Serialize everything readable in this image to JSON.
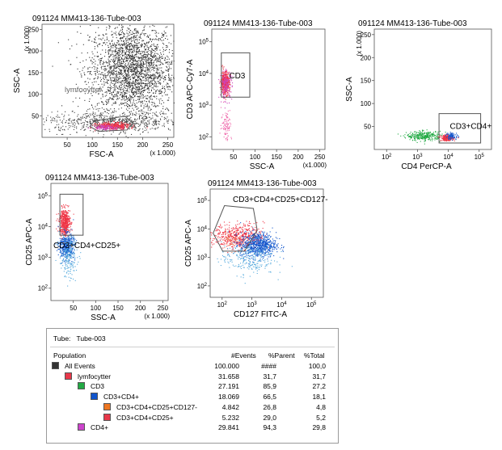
{
  "chart_data": [
    {
      "type": "scatter",
      "title": "091124 MM413-136-Tube-003",
      "xlabel": "FSC-A",
      "ylabel": "SSC-A",
      "x_ticks": [
        "50",
        "100",
        "150",
        "200",
        "250"
      ],
      "x_multiplier": "(x 1.000)",
      "y_ticks": [
        "50",
        "100",
        "150",
        "200",
        "250"
      ],
      "y_multiplier": "(x 1.000)",
      "xlim": [
        0,
        262
      ],
      "ylim": [
        0,
        262
      ],
      "gate": {
        "label": "lymfocytter",
        "polygon": [
          [
            95,
            25
          ],
          [
            104,
            38
          ],
          [
            165,
            49
          ],
          [
            180,
            33
          ],
          [
            169,
            17
          ],
          [
            112,
            14
          ]
        ]
      },
      "populations": [
        {
          "color": "#333333",
          "cx": 178,
          "cy": 157,
          "sx": 42,
          "sy": 55,
          "n": 2600
        },
        {
          "color": "#444444",
          "cx": 140,
          "cy": 36,
          "sx": 75,
          "sy": 12,
          "n": 650
        },
        {
          "color": "#ee3344",
          "cx": 140,
          "cy": 27,
          "sx": 16,
          "sy": 4,
          "n": 380
        },
        {
          "color": "#cc44bb",
          "cx": 127,
          "cy": 24,
          "sx": 14,
          "sy": 3,
          "n": 120
        }
      ]
    },
    {
      "type": "scatter",
      "title": "091124 MM413-136-Tube-003",
      "xlabel": "SSC-A",
      "ylabel": "CD3 APC-Cy7-A",
      "x_ticks": [
        "50",
        "100",
        "150",
        "200",
        "250"
      ],
      "x_multiplier": "(x1.000)",
      "y_ticks": [
        "10^2",
        "10^3",
        "10^4",
        "10^5"
      ],
      "xlim": [
        0,
        262
      ],
      "ylim": [
        1.6,
        5.4
      ],
      "gate": {
        "label": "CD3",
        "polygon": [
          [
            22,
            3.25
          ],
          [
            22,
            4.65
          ],
          [
            88,
            4.65
          ],
          [
            88,
            3.25
          ]
        ]
      },
      "populations": [
        {
          "color": "#ee3344",
          "cx": 30,
          "cy": 3.72,
          "sx": 5,
          "sy": 0.18,
          "n": 420
        },
        {
          "color": "#cc44bb",
          "cx": 32,
          "cy": 3.65,
          "sx": 7,
          "sy": 0.22,
          "n": 160
        },
        {
          "color": "#ee66aa",
          "cx": 33,
          "cy": 2.4,
          "sx": 6,
          "sy": 0.25,
          "n": 90
        }
      ]
    },
    {
      "type": "scatter",
      "title": "091124 MM413-136-Tube-003",
      "xlabel": "CD4 PerCP-A",
      "ylabel": "SSC-A",
      "x_ticks": [
        "10^2",
        "10^3",
        "10^4",
        "10^5"
      ],
      "y_ticks": [
        "50",
        "100",
        "150",
        "200",
        "250"
      ],
      "y_multiplier": "(x 1.000)",
      "xlim": [
        1.6,
        5.4
      ],
      "ylim": [
        0,
        262
      ],
      "gate": {
        "label": "CD3+CD4+",
        "polygon": [
          [
            3.7,
            14
          ],
          [
            3.7,
            78
          ],
          [
            5.05,
            78
          ],
          [
            5.05,
            14
          ]
        ]
      },
      "populations": [
        {
          "color": "#22aa44",
          "cx": 3.2,
          "cy": 30,
          "sx": 0.28,
          "sy": 5,
          "n": 300
        },
        {
          "color": "#ee3344",
          "cx": 3.95,
          "cy": 26,
          "sx": 0.1,
          "sy": 3,
          "n": 260
        },
        {
          "color": "#1155cc",
          "cx": 4.1,
          "cy": 30,
          "sx": 0.1,
          "sy": 4,
          "n": 80
        }
      ]
    },
    {
      "type": "scatter",
      "title": "091124 MM413-136-Tube-003",
      "xlabel": "SSC-A",
      "ylabel": "CD25 APC-A",
      "x_ticks": [
        "50",
        "100",
        "150",
        "200",
        "250"
      ],
      "x_multiplier": "(x 1.000)",
      "y_ticks": [
        "10^2",
        "10^3",
        "10^4",
        "10^5"
      ],
      "xlim": [
        0,
        262
      ],
      "ylim": [
        1.6,
        5.4
      ],
      "gate": {
        "label": "CD3+CD4+CD25+",
        "polygon": [
          [
            20,
            3.72
          ],
          [
            20,
            5.05
          ],
          [
            72,
            5.05
          ],
          [
            72,
            3.72
          ]
        ]
      },
      "populations": [
        {
          "color": "#ee3344",
          "cx": 30,
          "cy": 4.15,
          "sx": 6,
          "sy": 0.22,
          "n": 480
        },
        {
          "color": "#1155cc",
          "cx": 34,
          "cy": 3.38,
          "sx": 8,
          "sy": 0.2,
          "n": 420
        },
        {
          "color": "#55aadd",
          "cx": 38,
          "cy": 3.05,
          "sx": 10,
          "sy": 0.35,
          "n": 220
        }
      ]
    },
    {
      "type": "scatter",
      "title": "091124 MM413-136-Tube-003",
      "xlabel": "CD127 FITC-A",
      "ylabel": "CD25 APC-A",
      "x_ticks": [
        "10^2",
        "10^3",
        "10^4",
        "10^5"
      ],
      "y_ticks": [
        "10^2",
        "10^3",
        "10^4",
        "10^5"
      ],
      "xlim": [
        1.6,
        5.4
      ],
      "ylim": [
        1.6,
        5.4
      ],
      "gate": {
        "label": "CD3+CD4+CD25+CD127-",
        "polygon": [
          [
            1.7,
            3.85
          ],
          [
            2.02,
            3.22
          ],
          [
            2.75,
            3.22
          ],
          [
            3.18,
            3.95
          ],
          [
            3.05,
            4.72
          ],
          [
            2.08,
            4.82
          ]
        ]
      },
      "populations": [
        {
          "color": "#ee3344",
          "cx": 2.55,
          "cy": 3.75,
          "sx": 0.42,
          "sy": 0.22,
          "n": 520
        },
        {
          "color": "#1155cc",
          "cx": 3.2,
          "cy": 3.45,
          "sx": 0.3,
          "sy": 0.22,
          "n": 700
        },
        {
          "color": "#55aadd",
          "cx": 2.85,
          "cy": 3.0,
          "sx": 0.45,
          "sy": 0.3,
          "n": 260
        },
        {
          "color": "#ee8866",
          "cx": 2.3,
          "cy": 3.65,
          "sx": 0.15,
          "sy": 0.15,
          "n": 50
        }
      ]
    },
    {
      "type": "table",
      "tube_label": "Tube:",
      "tube_value": "Tube-003",
      "columns": [
        "Population",
        "#Events",
        "%Parent",
        "%Total"
      ],
      "rows": [
        {
          "name": "All Events",
          "color": "#333333",
          "level": 0,
          "events": "100.000",
          "parent": "####",
          "total": "100,0"
        },
        {
          "name": "lymfocytter",
          "color": "#e8384a",
          "level": 1,
          "events": "31.658",
          "parent": "31,7",
          "total": "31,7"
        },
        {
          "name": "CD3",
          "color": "#22aa44",
          "level": 2,
          "events": "27.191",
          "parent": "85,9",
          "total": "27,2"
        },
        {
          "name": "CD3+CD4+",
          "color": "#1155cc",
          "level": 3,
          "events": "18.069",
          "parent": "66,5",
          "total": "18,1"
        },
        {
          "name": "CD3+CD4+CD25+CD127-",
          "color": "#ee7722",
          "level": 4,
          "events": "4.842",
          "parent": "26,8",
          "total": "4,8"
        },
        {
          "name": "CD3+CD4+CD25+",
          "color": "#e8384a",
          "level": 4,
          "events": "5.232",
          "parent": "29,0",
          "total": "5,2"
        },
        {
          "name": "CD4+",
          "color": "#cc44cc",
          "level": 2,
          "events": "29.841",
          "parent": "94,3",
          "total": "29,8"
        }
      ]
    }
  ]
}
